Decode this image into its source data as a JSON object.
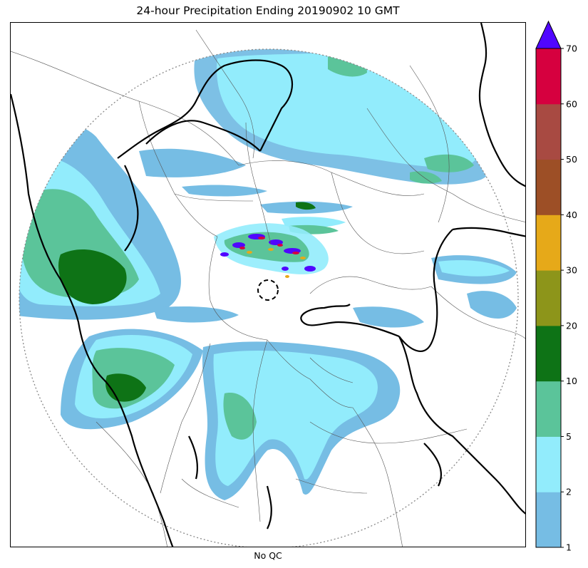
{
  "title": "24-hour Precipitation Ending 20190902 10 GMT",
  "xlabel": "No QC",
  "legend": {
    "levels": [
      1,
      2,
      5,
      10,
      20,
      30,
      40,
      50,
      60,
      70
    ],
    "tick_labels": [
      "1",
      "2",
      "5",
      "10",
      "20",
      "30",
      "40",
      "50",
      "60",
      "70"
    ],
    "colors": [
      "#76bde4",
      "#92ecfc",
      "#5bc49a",
      "#0e7316",
      "#8d951a",
      "#e6a919",
      "#9d4f26",
      "#a84a42",
      "#d6003f"
    ],
    "over_color": "#5006ff",
    "extend": "max"
  },
  "map": {
    "radar_range_circle": "dotted",
    "radar_site_marker": "dashed-circle",
    "colors": {
      "border_thick": "#000000",
      "border_thin": "#555555",
      "range_ring": "#888888"
    }
  }
}
